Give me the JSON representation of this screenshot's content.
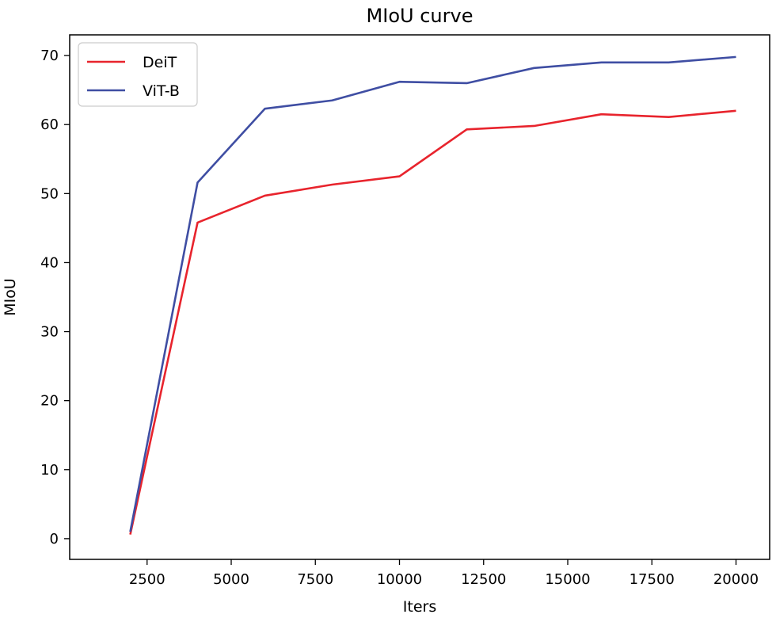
{
  "chart_data": {
    "type": "line",
    "title": "MIoU curve",
    "xlabel": "Iters",
    "ylabel": "MIoU",
    "xlim": [
      200,
      21000
    ],
    "ylim": [
      -3,
      73
    ],
    "xticks": [
      2500,
      5000,
      7500,
      10000,
      12500,
      15000,
      17500,
      20000
    ],
    "yticks": [
      0,
      10,
      20,
      30,
      40,
      50,
      60,
      70
    ],
    "legend_position": "top-left",
    "grid": false,
    "x": [
      2000,
      4000,
      6000,
      8000,
      10000,
      12000,
      14000,
      16000,
      18000,
      20000
    ],
    "series": [
      {
        "name": "DeiT",
        "color": "#e8242d",
        "values": [
          0.6,
          45.8,
          49.7,
          51.3,
          52.5,
          59.3,
          59.8,
          61.5,
          61.1,
          62.0
        ]
      },
      {
        "name": "ViT-B",
        "color": "#3f4ea3",
        "values": [
          1.0,
          51.6,
          62.3,
          63.5,
          66.2,
          66.0,
          68.2,
          69.0,
          69.0,
          69.8
        ]
      }
    ]
  }
}
